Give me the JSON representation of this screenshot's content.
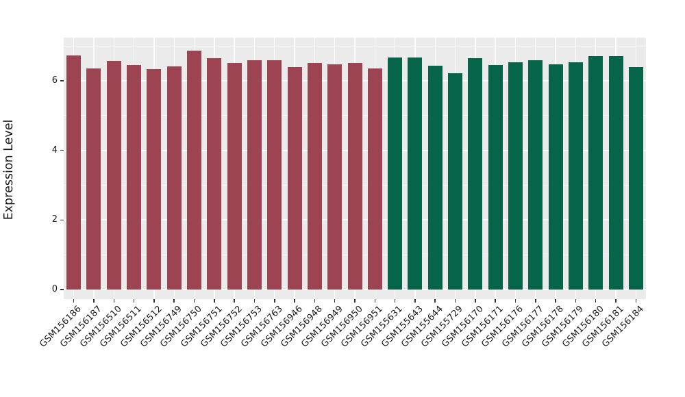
{
  "chart": {
    "ylabel": "Expression Level",
    "background": "#FFFFFF",
    "panel_bg": "#EBEBEB",
    "grid_color": "#FFFFFF",
    "tick_mark_color": "#333333",
    "text_color": "#1A1A1A"
  },
  "chart_data": {
    "type": "bar",
    "title": "",
    "xlabel": "",
    "ylabel": "Expression Level",
    "ylim": [
      0,
      7.24
    ],
    "yticks": [
      0,
      2,
      4,
      6
    ],
    "minor_yticks": [
      1,
      3,
      5,
      7
    ],
    "grid": true,
    "legend_position": "none",
    "x_label_angle": 45,
    "series": [
      {
        "color": "#9C4451",
        "categories": [
          "GSM156186",
          "GSM156187",
          "GSM156510",
          "GSM156511",
          "GSM156512",
          "GSM156749",
          "GSM156750",
          "GSM156751",
          "GSM156752",
          "GSM156753",
          "GSM156763",
          "GSM156946",
          "GSM156948",
          "GSM156949",
          "GSM156950",
          "GSM156951"
        ],
        "values": [
          6.73,
          6.35,
          6.56,
          6.46,
          6.34,
          6.41,
          6.86,
          6.64,
          6.5,
          6.58,
          6.58,
          6.4,
          6.5,
          6.48,
          6.51,
          6.35
        ]
      },
      {
        "color": "#066549",
        "categories": [
          "GSM155631",
          "GSM155643",
          "GSM155644",
          "GSM155729",
          "GSM156170",
          "GSM156171",
          "GSM156176",
          "GSM156177",
          "GSM156178",
          "GSM156179",
          "GSM156180",
          "GSM156181",
          "GSM156184"
        ],
        "values": [
          6.67,
          6.67,
          6.44,
          6.22,
          6.64,
          6.46,
          6.52,
          6.59,
          6.48,
          6.53,
          6.71,
          6.71,
          6.4
        ]
      }
    ]
  }
}
